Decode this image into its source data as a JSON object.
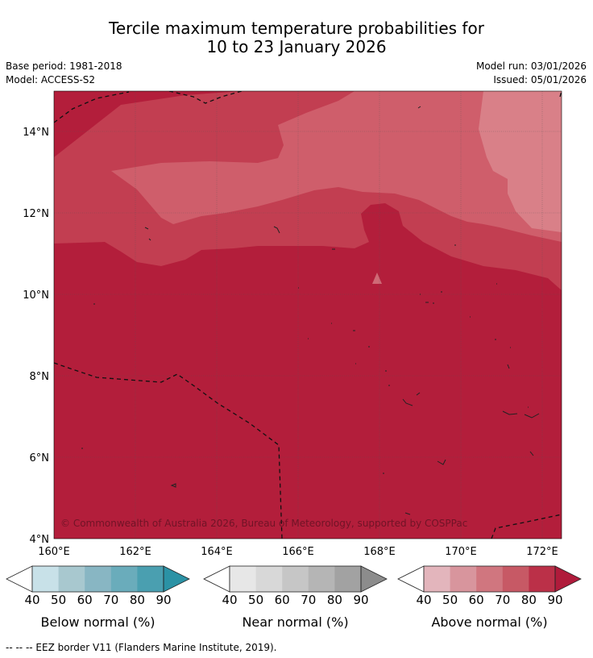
{
  "title": {
    "line1": "Tercile maximum temperature probabilities for",
    "line2": "10 to 23 January 2026"
  },
  "meta": {
    "base_period": "Base period: 1981-2018",
    "model": "Model: ACCESS-S2",
    "model_run": "Model run: 03/01/2026",
    "issued": "Issued: 05/01/2026"
  },
  "map": {
    "lat_labels": [
      "14°N",
      "12°N",
      "10°N",
      "8°N",
      "6°N",
      "4°N"
    ],
    "lat_values": [
      14,
      12,
      10,
      8,
      6,
      4
    ],
    "lon_labels": [
      "160°E",
      "162°E",
      "164°E",
      "166°E",
      "168°E",
      "170°E",
      "172°E"
    ],
    "lon_values": [
      160,
      162,
      164,
      166,
      168,
      170,
      172
    ],
    "extent": {
      "lon_min": 160,
      "lon_max": 172.5,
      "lat_min": 4,
      "lat_max": 15
    },
    "copyright": "© Commonwealth of Australia 2026, Bureau of Meteorology, supported by COSPPac",
    "colors": {
      "above_80_90": "#b31e3b",
      "above_70_80": "#c23e51",
      "above_60_70": "#cf5e6b",
      "background_ocean": "#ffffff"
    }
  },
  "colorbars": [
    {
      "title": "Below normal (%)",
      "ticks": [
        "40",
        "50",
        "60",
        "70",
        "80",
        "90"
      ],
      "colors": [
        "#c8e1e8",
        "#a8c8cf",
        "#88b6c3",
        "#6aacbb",
        "#4a9fb0",
        "#2b92a5"
      ]
    },
    {
      "title": "Near normal (%)",
      "ticks": [
        "40",
        "50",
        "60",
        "70",
        "80",
        "90"
      ],
      "colors": [
        "#e7e7e7",
        "#d8d8d8",
        "#c6c6c6",
        "#b5b5b5",
        "#a2a2a2",
        "#8c8c8c"
      ]
    },
    {
      "title": "Above normal (%)",
      "ticks": [
        "40",
        "50",
        "60",
        "70",
        "80",
        "90"
      ],
      "colors": [
        "#e3b5bc",
        "#d8959d",
        "#d0767f",
        "#c75965",
        "#bb3048",
        "#b01b3b"
      ]
    }
  ],
  "footer": "--  --  -- EEZ border V11 (Flanders Marine Institute, 2019)."
}
